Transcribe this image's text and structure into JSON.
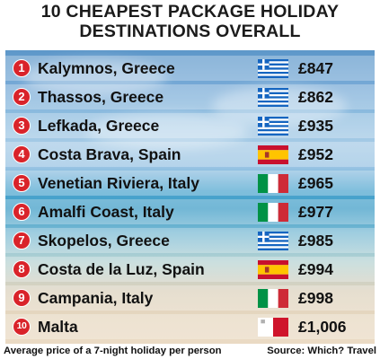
{
  "title": {
    "line1": "10 CHEAPEST PACKAGE HOLIDAY",
    "line2": "DESTINATIONS OVERALL"
  },
  "rows": [
    {
      "rank": "1",
      "destination": "Kalymnos, Greece",
      "flag": "greece-flag-icon",
      "price": "£847"
    },
    {
      "rank": "2",
      "destination": "Thassos, Greece",
      "flag": "greece-flag-icon",
      "price": "£862"
    },
    {
      "rank": "3",
      "destination": "Lefkada, Greece",
      "flag": "greece-flag-icon",
      "price": "£935"
    },
    {
      "rank": "4",
      "destination": "Costa Brava, Spain",
      "flag": "spain-flag-icon",
      "price": "£952"
    },
    {
      "rank": "5",
      "destination": "Venetian Riviera, Italy",
      "flag": "italy-flag-icon",
      "price": "£965"
    },
    {
      "rank": "6",
      "destination": "Amalfi Coast, Italy",
      "flag": "italy-flag-icon",
      "price": "£977"
    },
    {
      "rank": "7",
      "destination": "Skopelos, Greece",
      "flag": "greece-flag-icon",
      "price": "£985"
    },
    {
      "rank": "8",
      "destination": "Costa de la Luz, Spain",
      "flag": "spain-flag-icon",
      "price": "£994"
    },
    {
      "rank": "9",
      "destination": "Campania, Italy",
      "flag": "italy-flag-icon",
      "price": "£998"
    },
    {
      "rank": "10",
      "destination": "Malta",
      "flag": "malta-flag-icon",
      "price": "£1,006"
    }
  ],
  "footer": {
    "note": "Average price of a 7-night holiday per person",
    "source": "Source: Which? Travel"
  },
  "colors": {
    "badge": "#d9232a",
    "greece_blue": "#1565c0",
    "spain_red": "#c8102e",
    "spain_yellow": "#ffc400",
    "italy_green": "#009246",
    "italy_red": "#ce2b37",
    "malta_red": "#cf142b"
  }
}
